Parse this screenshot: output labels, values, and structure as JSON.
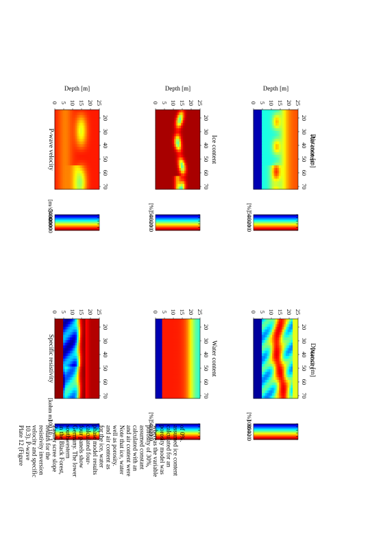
{
  "caption_lines": [
    "Plate 12 (Figure",
    "10.3). P-wave",
    "velocity and specific",
    "resistivity inversion",
    "results for the",
    "Zastler scree slope",
    "in the Black Forest,",
    "southwestern",
    "Germany. The lower",
    "four panels show",
    "calculated four-",
    "phase model results",
    "for the ice, water",
    "and air content as",
    "well as porosity.",
    "Note that ice, water",
    "and air content were",
    "calculated with an",
    "assumed constant",
    "porosity of 30%,",
    "whereas the variable",
    "porosity model was",
    "calculated for an",
    "assumed ice content",
    "of 0%."
  ],
  "chart_data": [
    {
      "type": "heatmap",
      "title": "P-wave velocity",
      "xlabel": "",
      "ylabel": "Depth [m]",
      "x_ticks": [
        20,
        30,
        40,
        50,
        60,
        70
      ],
      "y_ticks": [
        0,
        5,
        10,
        15,
        20,
        25
      ],
      "xlim": [
        14,
        72
      ],
      "ylim": [
        0,
        25
      ],
      "colorbar": {
        "unit": "[m/s]",
        "ticks": [
          5000,
          4000,
          3000,
          2000,
          1000
        ],
        "range": [
          0,
          5000
        ],
        "scale": "linear",
        "colormap": "jet-reversed"
      }
    },
    {
      "type": "heatmap",
      "title": "Specific resistivity",
      "xlabel": "",
      "ylabel": "",
      "x_ticks": [
        20,
        30,
        40,
        50,
        60,
        70
      ],
      "y_ticks": [
        0,
        5,
        10,
        15,
        20,
        25
      ],
      "xlim": [
        14,
        72
      ],
      "ylim": [
        0,
        25
      ],
      "colorbar": {
        "unit": "[kohm m]",
        "ticks": [
          100,
          10,
          1
        ],
        "range": [
          1,
          100
        ],
        "scale": "log",
        "colormap": "jet-reversed"
      }
    },
    {
      "type": "heatmap",
      "title": "",
      "xlabel": "Ice content",
      "ylabel": "Depth [m]",
      "x_ticks": [
        20,
        30,
        40,
        50,
        60,
        70
      ],
      "y_ticks": [
        0,
        5,
        10,
        15,
        20,
        25
      ],
      "xlim": [
        14,
        72
      ],
      "ylim": [
        0,
        25
      ],
      "colorbar": {
        "unit": "[%]",
        "ticks": [
          50,
          40,
          30,
          20,
          10,
          0
        ],
        "range": [
          0,
          50
        ],
        "scale": "linear",
        "colormap": "jet-reversed"
      }
    },
    {
      "type": "heatmap",
      "title": "",
      "xlabel": "Water content",
      "ylabel": "",
      "x_ticks": [
        20,
        30,
        40,
        50,
        60,
        70
      ],
      "y_ticks": [
        0,
        5,
        10,
        15,
        20,
        25
      ],
      "xlim": [
        14,
        72
      ],
      "ylim": [
        0,
        25
      ],
      "colorbar": {
        "unit": "[%]",
        "ticks": [
          50,
          40,
          30,
          20,
          10,
          0
        ],
        "range": [
          0,
          50
        ],
        "scale": "linear",
        "colormap": "jet-reversed"
      }
    },
    {
      "type": "heatmap",
      "title": "",
      "xlabel": "Air content",
      "ylabel": "Depth [m]",
      "x_ticks": [
        20,
        30,
        40,
        50,
        60,
        70
      ],
      "y_ticks": [
        0,
        5,
        10,
        15,
        20,
        25
      ],
      "xlim": [
        14,
        72
      ],
      "ylim": [
        0,
        25
      ],
      "colorbar": {
        "unit": "[%]",
        "ticks": [
          50,
          40,
          30,
          20,
          10,
          0
        ],
        "range": [
          0,
          50
        ],
        "scale": "linear",
        "colormap": "jet-reversed"
      }
    },
    {
      "type": "heatmap",
      "title": "",
      "xlabel": "Porosity",
      "ylabel": "",
      "x_ticks": [
        20,
        30,
        40,
        50,
        60,
        70
      ],
      "y_ticks": [
        0,
        5,
        10,
        15,
        20,
        25
      ],
      "xlim": [
        14,
        72
      ],
      "ylim": [
        0,
        25
      ],
      "colorbar": {
        "unit": "[%]",
        "ticks": [
          100,
          80,
          60,
          40,
          20,
          0
        ],
        "range": [
          0,
          100
        ],
        "scale": "linear",
        "colormap": "jet-reversed"
      }
    }
  ],
  "shared_xlabel": "Distance [m]"
}
